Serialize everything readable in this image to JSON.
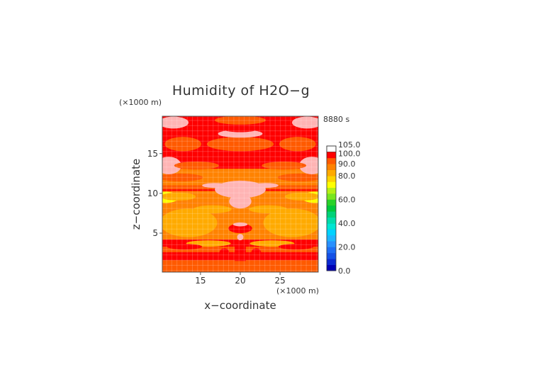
{
  "chart_data": {
    "type": "heatmap",
    "title": "Humidity of H2O−g",
    "time_label": "8880 s",
    "xlabel": "x−coordinate",
    "ylabel": "z−coordinate",
    "x_unit": "(×1000 m)",
    "y_unit": "(×1000 m)",
    "xlim": [
      10.2,
      29.8
    ],
    "ylim": [
      0.1,
      19.7
    ],
    "x_ticks": [
      15,
      20,
      25
    ],
    "y_ticks": [
      5,
      10,
      15
    ],
    "colorbar": {
      "levels": [
        0,
        5,
        10,
        15,
        20,
        25,
        30,
        35,
        40,
        45,
        50,
        55,
        60,
        65,
        70,
        75,
        80,
        85,
        90,
        95,
        100,
        105
      ],
      "labels": [
        "0.0",
        "20.0",
        "40.0",
        "60.0",
        "80.0",
        "90.0",
        "100.0",
        "105.0"
      ],
      "colors": [
        "#0000b4",
        "#0a2ad2",
        "#1450e6",
        "#1e6ef5",
        "#2890ff",
        "#1eb4ff",
        "#00d2ff",
        "#00e6d2",
        "#00dcaa",
        "#00d278",
        "#00c83c",
        "#28d228",
        "#78e61e",
        "#b4f014",
        "#ffff00",
        "#ffd200",
        "#ffaa00",
        "#ff8200",
        "#ff5a00",
        "#ff0000",
        "#ffb4b4"
      ]
    },
    "regions": [
      {
        "shape": "rect",
        "x0": 10.2,
        "x1": 29.8,
        "z0": 0.1,
        "z1": 19.7,
        "value": 97
      },
      {
        "shape": "rect",
        "x0": 10.2,
        "x1": 29.8,
        "z0": 0.1,
        "z1": 1.6,
        "value": 92
      },
      {
        "shape": "rect",
        "x0": 10.2,
        "x1": 29.8,
        "z0": 2.6,
        "z1": 3.3,
        "value": 92
      },
      {
        "shape": "rect",
        "x0": 10.2,
        "x1": 29.8,
        "z0": 4.2,
        "z1": 8.8,
        "value": 86
      },
      {
        "shape": "ellipse",
        "cx": 13.5,
        "cz": 6.3,
        "rx": 3.6,
        "rz": 1.8,
        "value": 82
      },
      {
        "shape": "ellipse",
        "cx": 26.5,
        "cz": 6.3,
        "rx": 3.6,
        "rz": 1.8,
        "value": 82
      },
      {
        "shape": "ellipse",
        "cx": 16.5,
        "cz": 8.0,
        "rx": 2.4,
        "rz": 0.5,
        "value": 82
      },
      {
        "shape": "ellipse",
        "cx": 23.5,
        "cz": 8.0,
        "rx": 2.4,
        "rz": 0.5,
        "value": 82
      },
      {
        "shape": "ellipse",
        "cx": 16.0,
        "cz": 3.7,
        "rx": 2.8,
        "rz": 0.4,
        "value": 82
      },
      {
        "shape": "ellipse",
        "cx": 24.0,
        "cz": 3.7,
        "rx": 2.8,
        "rz": 0.4,
        "value": 82
      },
      {
        "shape": "rect",
        "x0": 10.2,
        "x1": 29.8,
        "z0": 8.8,
        "z1": 10.3,
        "value": 86
      },
      {
        "shape": "ellipse",
        "cx": 10.6,
        "cz": 9.5,
        "rx": 1.7,
        "rz": 0.7,
        "value": 72
      },
      {
        "shape": "ellipse",
        "cx": 29.4,
        "cz": 9.5,
        "rx": 1.7,
        "rz": 0.7,
        "value": 72
      },
      {
        "shape": "ellipse",
        "cx": 12.2,
        "cz": 9.6,
        "rx": 2.2,
        "rz": 0.5,
        "value": 82
      },
      {
        "shape": "ellipse",
        "cx": 27.8,
        "cz": 9.6,
        "rx": 2.2,
        "rz": 0.5,
        "value": 82
      },
      {
        "shape": "rect",
        "x0": 10.2,
        "x1": 29.8,
        "z0": 10.5,
        "z1": 11.0,
        "value": 92
      },
      {
        "shape": "rect",
        "x0": 10.2,
        "x1": 29.8,
        "z0": 11.0,
        "z1": 13.1,
        "value": 86
      },
      {
        "shape": "ellipse",
        "cx": 12.5,
        "cz": 12.0,
        "rx": 2.8,
        "rz": 0.5,
        "value": 92
      },
      {
        "shape": "ellipse",
        "cx": 27.5,
        "cz": 12.0,
        "rx": 2.8,
        "rz": 0.5,
        "value": 92
      },
      {
        "shape": "ellipse",
        "cx": 20.0,
        "cz": 16.2,
        "rx": 4.2,
        "rz": 0.9,
        "value": 92
      },
      {
        "shape": "ellipse",
        "cx": 12.8,
        "cz": 16.2,
        "rx": 2.3,
        "rz": 0.9,
        "value": 92
      },
      {
        "shape": "ellipse",
        "cx": 27.2,
        "cz": 16.2,
        "rx": 2.3,
        "rz": 0.9,
        "value": 92
      },
      {
        "shape": "ellipse",
        "cx": 20.0,
        "cz": 19.2,
        "rx": 3.2,
        "rz": 0.55,
        "value": 92
      },
      {
        "shape": "ellipse",
        "cx": 20.0,
        "cz": 17.5,
        "rx": 2.8,
        "rz": 0.5,
        "value": 103
      },
      {
        "shape": "ellipse",
        "cx": 20.0,
        "cz": 18.0,
        "rx": 2.0,
        "rz": 0.3,
        "value": 97
      },
      {
        "shape": "ellipse",
        "cx": 11.6,
        "cz": 18.9,
        "rx": 1.9,
        "rz": 0.75,
        "value": 103
      },
      {
        "shape": "ellipse",
        "cx": 28.4,
        "cz": 18.9,
        "rx": 1.9,
        "rz": 0.75,
        "value": 103
      },
      {
        "shape": "ellipse",
        "cx": 11.0,
        "cz": 13.5,
        "rx": 1.6,
        "rz": 1.1,
        "value": 103
      },
      {
        "shape": "ellipse",
        "cx": 29.0,
        "cz": 13.5,
        "rx": 1.6,
        "rz": 1.1,
        "value": 103
      },
      {
        "shape": "ellipse",
        "cx": 14.5,
        "cz": 13.5,
        "rx": 2.8,
        "rz": 0.5,
        "value": 92
      },
      {
        "shape": "ellipse",
        "cx": 25.5,
        "cz": 13.5,
        "rx": 2.8,
        "rz": 0.5,
        "value": 92
      },
      {
        "shape": "ellipse",
        "cx": 20.0,
        "cz": 10.5,
        "rx": 3.2,
        "rz": 1.1,
        "value": 103
      },
      {
        "shape": "ellipse",
        "cx": 20.0,
        "cz": 9.0,
        "rx": 1.4,
        "rz": 0.9,
        "value": 103
      },
      {
        "shape": "ellipse",
        "cx": 16.8,
        "cz": 11.0,
        "rx": 1.6,
        "rz": 0.3,
        "value": 103
      },
      {
        "shape": "ellipse",
        "cx": 23.2,
        "cz": 11.0,
        "rx": 1.6,
        "rz": 0.3,
        "value": 103
      },
      {
        "shape": "ellipse",
        "cx": 20.0,
        "cz": 5.6,
        "rx": 1.5,
        "rz": 0.6,
        "value": 97
      },
      {
        "shape": "ellipse",
        "cx": 20.0,
        "cz": 6.1,
        "rx": 0.9,
        "rz": 0.25,
        "value": 103
      },
      {
        "shape": "ellipse",
        "cx": 20.0,
        "cz": 4.5,
        "rx": 0.4,
        "rz": 0.4,
        "value": 103
      },
      {
        "shape": "rect",
        "x0": 19.3,
        "x1": 20.7,
        "z0": 1.5,
        "z1": 4.0,
        "value": 97
      },
      {
        "shape": "ellipse",
        "cx": 18.0,
        "cz": 2.6,
        "rx": 0.6,
        "rz": 0.5,
        "value": 97
      },
      {
        "shape": "ellipse",
        "cx": 22.0,
        "cz": 2.6,
        "rx": 0.6,
        "rz": 0.5,
        "value": 97
      },
      {
        "shape": "ellipse",
        "cx": 13.0,
        "cz": 3.3,
        "rx": 2.2,
        "rz": 0.35,
        "value": 97
      },
      {
        "shape": "ellipse",
        "cx": 27.0,
        "cz": 3.3,
        "rx": 2.2,
        "rz": 0.35,
        "value": 97
      }
    ]
  }
}
